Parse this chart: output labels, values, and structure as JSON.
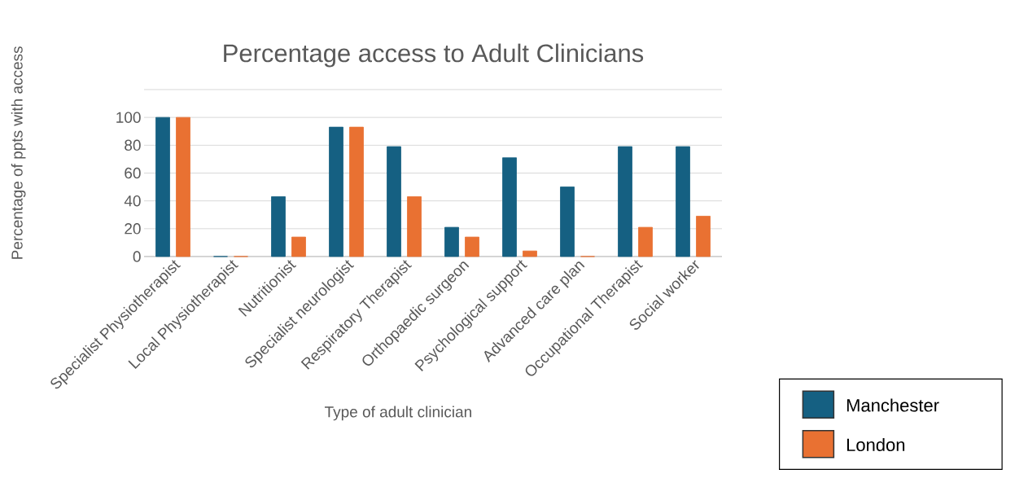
{
  "chart_data": {
    "type": "bar",
    "title": "Percentage access to Adult Clinicians",
    "xlabel": "Type of adult clinician",
    "ylabel": "Percentage of ppts with access",
    "categories": [
      "Specialist Physiotherapist",
      "Local Physiotherapist",
      "Nutritionist",
      "Specialist neurologist",
      "Respiratory Therapist",
      "Orthopaedic surgeon",
      "Psychological support",
      "Advanced care plan",
      "Occupational Therapist",
      "Social worker"
    ],
    "series": [
      {
        "name": "Manchester",
        "color": "#156082",
        "values": [
          100,
          0,
          43,
          93,
          79,
          21,
          71,
          50,
          79,
          79
        ]
      },
      {
        "name": "London",
        "color": "#e97132",
        "values": [
          100,
          0,
          14,
          93,
          43,
          14,
          4,
          0,
          21,
          29
        ]
      }
    ],
    "ylim": [
      0,
      120
    ],
    "yticks": [
      0,
      20,
      40,
      60,
      80,
      100,
      {
        "value": 120,
        "label": null
      }
    ],
    "grid": "y",
    "legend": "bottom right"
  }
}
